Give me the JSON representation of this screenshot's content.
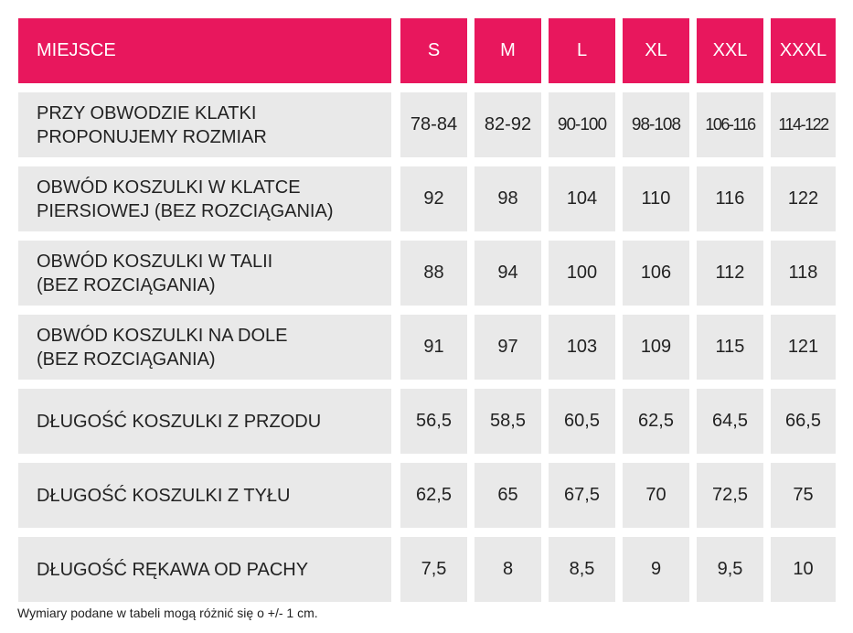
{
  "header": {
    "label": "MIEJSCE",
    "sizes": [
      "S",
      "M",
      "L",
      "XL",
      "XXL",
      "XXXL"
    ]
  },
  "rows": [
    {
      "label": "PRZY OBWODZIE KLATKI\nPROPONUJEMY ROZMIAR",
      "values": [
        "78-84",
        "82-92",
        "90-100",
        "98-108",
        "106-116",
        "114-122"
      ]
    },
    {
      "label": "OBWÓD KOSZULKI W KLATCE\nPIERSIOWEJ (BEZ ROZCIĄGANIA)",
      "values": [
        "92",
        "98",
        "104",
        "110",
        "116",
        "122"
      ]
    },
    {
      "label": "OBWÓD KOSZULKI W TALII\n(BEZ ROZCIĄGANIA)",
      "values": [
        "88",
        "94",
        "100",
        "106",
        "112",
        "118"
      ]
    },
    {
      "label": "OBWÓD KOSZULKI NA DOLE\n(BEZ ROZCIĄGANIA)",
      "values": [
        "91",
        "97",
        "103",
        "109",
        "115",
        "121"
      ]
    },
    {
      "label": "DŁUGOŚĆ KOSZULKI Z PRZODU",
      "values": [
        "56,5",
        "58,5",
        "60,5",
        "62,5",
        "64,5",
        "66,5"
      ]
    },
    {
      "label": "DŁUGOŚĆ KOSZULKI Z TYŁU",
      "values": [
        "62,5",
        "65",
        "67,5",
        "70",
        "72,5",
        "75"
      ]
    },
    {
      "label": "DŁUGOŚĆ RĘKAWA OD PACHY",
      "values": [
        "7,5",
        "8",
        "8,5",
        "9",
        "9,5",
        "10"
      ]
    }
  ],
  "footnote": "Wymiary podane w tabeli mogą różnić się o +/- 1 cm.",
  "colors": {
    "header_bg": "#e8175d",
    "header_text": "#ffffff",
    "cell_bg": "#e9e9e9",
    "cell_text": "#222222"
  }
}
